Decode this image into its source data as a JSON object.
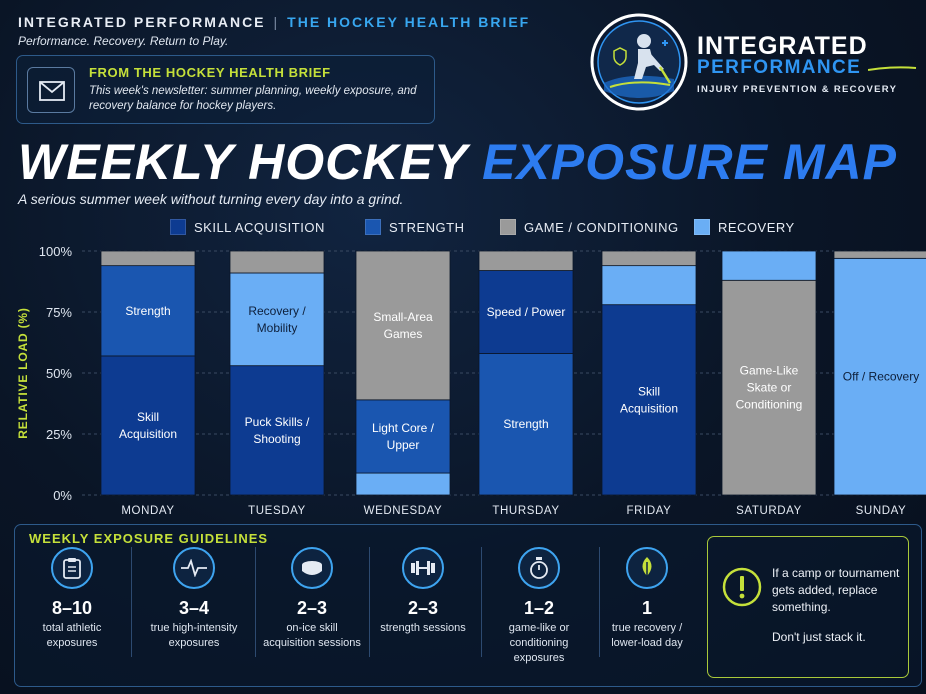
{
  "header": {
    "brand": "INTEGRATED PERFORMANCE",
    "separator": "|",
    "brand_sub": "THE HOCKEY HEALTH BRIEF",
    "tagline": "Performance. Recovery. Return to Play."
  },
  "newsletter": {
    "icon": "envelope-icon",
    "heading": "FROM THE HOCKEY HEALTH BRIEF",
    "body": "This week's newsletter: summer planning, weekly exposure, and recovery balance for hockey players."
  },
  "logo": {
    "icon": "hockey-player-badge-icon",
    "line1": "INTEGRATED",
    "line2": "PERFORMANCE",
    "tag": "INJURY PREVENTION & RECOVERY"
  },
  "title": {
    "part1": "WEEKLY HOCKEY",
    "part2": "EXPOSURE MAP"
  },
  "subtitle": "A serious summer week without turning every day into a grind.",
  "colors": {
    "skill": "#0d3b91",
    "strength": "#1a56b0",
    "game": "#9a9a9a",
    "recovery": "#6aaef5",
    "accent": "#c5e03a",
    "title_blue": "#2d7cf0"
  },
  "chart_data": {
    "type": "bar",
    "stacked": true,
    "ylabel": "RELATIVE LOAD (%)",
    "ylim": [
      0,
      100
    ],
    "yticks": [
      "0%",
      "25%",
      "50%",
      "75%",
      "100%"
    ],
    "legend": [
      "SKILL ACQUISITION",
      "STRENGTH",
      "GAME / CONDITIONING",
      "RECOVERY"
    ],
    "legend_position": "top",
    "categories": [
      "MONDAY",
      "TUESDAY",
      "WEDNESDAY",
      "THURSDAY",
      "FRIDAY",
      "SATURDAY",
      "SUNDAY"
    ],
    "days": [
      {
        "segments": [
          {
            "type": "skill",
            "value": 57,
            "label": "Skill Acquisition"
          },
          {
            "type": "strength",
            "value": 37,
            "label": "Strength"
          },
          {
            "type": "game",
            "value": 6,
            "label": ""
          }
        ]
      },
      {
        "segments": [
          {
            "type": "skill",
            "value": 53,
            "label": "Puck Skills / Shooting"
          },
          {
            "type": "recovery",
            "value": 38,
            "label": "Recovery / Mobility"
          },
          {
            "type": "game",
            "value": 9,
            "label": ""
          }
        ]
      },
      {
        "segments": [
          {
            "type": "recovery",
            "value": 9,
            "label": ""
          },
          {
            "type": "strength",
            "value": 30,
            "label": "Light Core / Upper"
          },
          {
            "type": "game",
            "value": 61,
            "label": "Small-Area Games"
          }
        ]
      },
      {
        "segments": [
          {
            "type": "strength",
            "value": 58,
            "label": "Strength"
          },
          {
            "type": "skill",
            "value": 34,
            "label": "Speed / Power"
          },
          {
            "type": "game",
            "value": 8,
            "label": ""
          }
        ]
      },
      {
        "segments": [
          {
            "type": "skill",
            "value": 78,
            "label": "Skill Acquisition"
          },
          {
            "type": "recovery",
            "value": 16,
            "label": ""
          },
          {
            "type": "game",
            "value": 6,
            "label": ""
          }
        ]
      },
      {
        "segments": [
          {
            "type": "game",
            "value": 88,
            "label": "Game-Like Skate or Conditioning"
          },
          {
            "type": "recovery",
            "value": 12,
            "label": ""
          }
        ]
      },
      {
        "segments": [
          {
            "type": "recovery",
            "value": 97,
            "label": "Off / Recovery"
          },
          {
            "type": "game",
            "value": 3,
            "label": ""
          }
        ]
      }
    ]
  },
  "guidelines": {
    "title": "WEEKLY EXPOSURE GUIDELINES",
    "items": [
      {
        "icon": "clipboard-icon",
        "num": "8–10",
        "label": "total athletic exposures"
      },
      {
        "icon": "heartbeat-icon",
        "num": "3–4",
        "label": "true high-intensity exposures"
      },
      {
        "icon": "hockey-puck-icon",
        "num": "2–3",
        "label": "on-ice skill acquisition sessions"
      },
      {
        "icon": "dumbbell-icon",
        "num": "2–3",
        "label": "strength sessions"
      },
      {
        "icon": "stopwatch-icon",
        "num": "1–2",
        "label": "game-like or conditioning exposures"
      },
      {
        "icon": "leaf-icon",
        "num": "1",
        "label": "true recovery / lower-load day"
      }
    ],
    "callout": {
      "icon": "warning-icon",
      "text1": "If a camp or tournament gets added, replace something.",
      "text2": "Don't just stack it."
    }
  }
}
